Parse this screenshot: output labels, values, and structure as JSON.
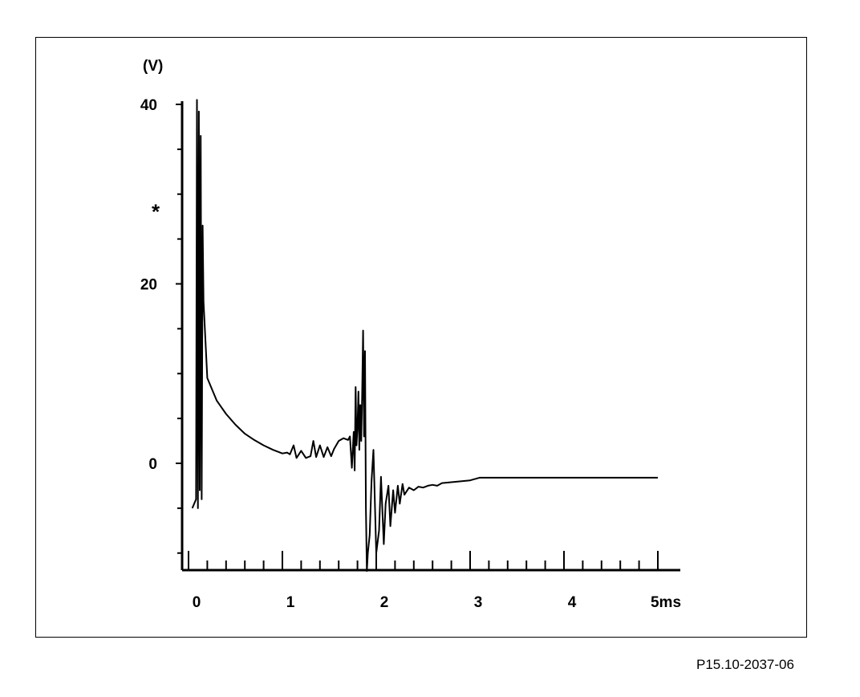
{
  "figure_id": "P15.10-2037-06",
  "chart_data": {
    "type": "line",
    "title": "",
    "ylabel": "(V)",
    "xunit": "ms",
    "xlim": [
      0,
      5
    ],
    "ylim": [
      -11.5,
      40
    ],
    "x_ticks": [
      {
        "value": 0,
        "label": "0"
      },
      {
        "value": 1,
        "label": "1"
      },
      {
        "value": 2,
        "label": "2"
      },
      {
        "value": 3,
        "label": "3"
      },
      {
        "value": 4,
        "label": "4"
      },
      {
        "value": 5,
        "label": "5ms"
      }
    ],
    "y_ticks": [
      {
        "value": 40,
        "label": "40"
      },
      {
        "value": 20,
        "label": "20"
      },
      {
        "value": 0,
        "label": "0"
      }
    ],
    "x_minor_step": 0.2,
    "y_minor_step": 5,
    "y_marker": {
      "value": 28.5,
      "label": "*"
    },
    "grid": false,
    "legend": "none",
    "line_color": "#000000",
    "series": [
      {
        "x": [
          0.04,
          0.08,
          0.09,
          0.1,
          0.11,
          0.12,
          0.13,
          0.14,
          0.15,
          0.16,
          0.2,
          0.3,
          0.4,
          0.5,
          0.6,
          0.7,
          0.8,
          0.9,
          1.0,
          1.05,
          1.08,
          1.12,
          1.15,
          1.2,
          1.25,
          1.3,
          1.33,
          1.36,
          1.4,
          1.44,
          1.48,
          1.52,
          1.55,
          1.6,
          1.65,
          1.7,
          1.72,
          1.74,
          1.76,
          1.77,
          1.78,
          1.79,
          1.8,
          1.81,
          1.82,
          1.83,
          1.84,
          1.85,
          1.86,
          1.87,
          1.88,
          1.89,
          1.9,
          1.91,
          1.93,
          1.95,
          1.97,
          2.0,
          2.03,
          2.05,
          2.08,
          2.1,
          2.13,
          2.15,
          2.18,
          2.2,
          2.23,
          2.25,
          2.28,
          2.3,
          2.35,
          2.4,
          2.45,
          2.5,
          2.55,
          2.6,
          2.65,
          2.7,
          2.8,
          2.9,
          3.0,
          3.1,
          3.5,
          4.0,
          4.5,
          5.0
        ],
        "y": [
          -5,
          -4,
          40.5,
          -5,
          39.2,
          -3,
          36.5,
          -4,
          26.5,
          18,
          9.5,
          7,
          5.5,
          4.3,
          3.3,
          2.6,
          2.0,
          1.5,
          1.1,
          1.2,
          1.0,
          2.0,
          0.6,
          1.4,
          0.6,
          0.8,
          2.5,
          0.7,
          2.0,
          0.7,
          1.8,
          0.8,
          1.6,
          2.5,
          2.8,
          2.6,
          3.0,
          -0.5,
          3.5,
          -0.8,
          8.5,
          2.0,
          4.0,
          8.0,
          1.5,
          6.5,
          2.5,
          7.5,
          14.8,
          3.0,
          12.5,
          -5.0,
          -12.0,
          -10.0,
          -8.0,
          -2.0,
          1.5,
          -10.0,
          -7.5,
          -1.5,
          -9.0,
          -4.5,
          -2.5,
          -7.0,
          -3.0,
          -5.5,
          -2.5,
          -4.5,
          -2.3,
          -3.5,
          -2.7,
          -3.0,
          -2.6,
          -2.7,
          -2.5,
          -2.4,
          -2.5,
          -2.2,
          -2.1,
          -2.0,
          -1.9,
          -1.6,
          -1.6,
          -1.6,
          -1.6,
          -1.6
        ]
      }
    ]
  }
}
